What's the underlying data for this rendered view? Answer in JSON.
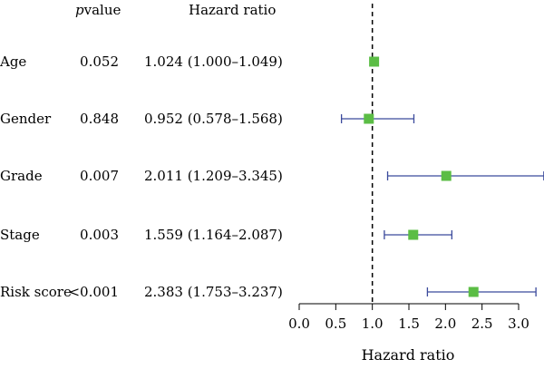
{
  "chart_data": {
    "type": "forest",
    "header": {
      "p_label_italic": "p",
      "p_label_rest": "value",
      "hr_label": "Hazard ratio"
    },
    "rows": [
      {
        "label": "Age",
        "p": "0.052",
        "hr_text": "1.024 (1.000–1.049)",
        "hr": 1.024,
        "lo": 1.0,
        "hi": 1.049
      },
      {
        "label": "Gender",
        "p": "0.848",
        "hr_text": "0.952 (0.578–1.568)",
        "hr": 0.952,
        "lo": 0.578,
        "hi": 1.568
      },
      {
        "label": "Grade",
        "p": "0.007",
        "hr_text": "2.011 (1.209–3.345)",
        "hr": 2.011,
        "lo": 1.209,
        "hi": 3.345
      },
      {
        "label": "Stage",
        "p": "0.003",
        "hr_text": "1.559 (1.164–2.087)",
        "hr": 1.559,
        "lo": 1.164,
        "hi": 2.087
      },
      {
        "label": "Risk score",
        "p": "<0.001",
        "hr_text": "2.383 (1.753–3.237)",
        "hr": 2.383,
        "lo": 1.753,
        "hi": 3.237
      }
    ],
    "x_axis": {
      "label": "Hazard ratio",
      "ticks": [
        "0.0",
        "0.5",
        "1.0",
        "1.5",
        "2.0",
        "2.5",
        "3.0"
      ],
      "range": [
        0,
        3.0
      ],
      "reference_line": 1.0
    },
    "colors": {
      "point": "#5bbd45",
      "ci_line": "#3b4a9c",
      "reference": "#000000"
    }
  }
}
